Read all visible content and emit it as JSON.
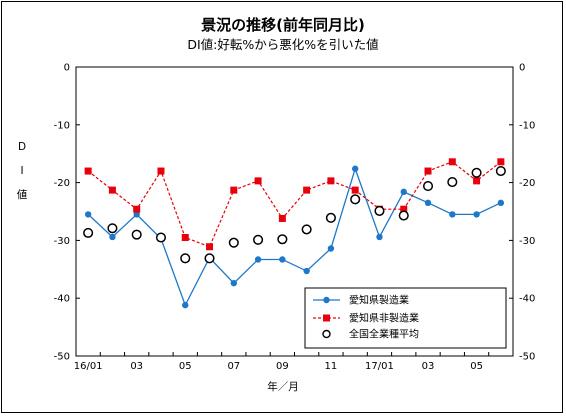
{
  "chart_data": {
    "type": "line",
    "title": "景況の推移(前年同月比)",
    "subtitle": "DI値:好転%から悪化%を引いた値",
    "xlabel": "年／月",
    "ylabel": "D I 値",
    "ylim": [
      -50,
      0
    ],
    "yticks": [
      0,
      -10,
      -20,
      -30,
      -40,
      -50
    ],
    "grid": false,
    "legend_position": "bottom-right",
    "x_tick_labels": [
      {
        "index": 0,
        "label": "16/01"
      },
      {
        "index": 2,
        "label": "03"
      },
      {
        "index": 4,
        "label": "05"
      },
      {
        "index": 6,
        "label": "07"
      },
      {
        "index": 8,
        "label": "09"
      },
      {
        "index": 10,
        "label": "11"
      },
      {
        "index": 12,
        "label": "17/01"
      },
      {
        "index": 14,
        "label": "03"
      },
      {
        "index": 16,
        "label": "05"
      }
    ],
    "series": [
      {
        "name": "愛知県製造業",
        "color": "#1f77c9",
        "style": "solid-circle",
        "values": [
          -25.5,
          -29.4,
          -25.5,
          -29.7,
          -41.2,
          -33.0,
          -37.4,
          -33.3,
          -33.3,
          -35.3,
          -31.4,
          -17.6,
          -29.4,
          -21.6,
          -23.5,
          -25.5,
          -25.5,
          -23.5
        ]
      },
      {
        "name": "愛知県非製造業",
        "color": "#e8000b",
        "style": "dashed-square",
        "values": [
          -18.0,
          -21.3,
          -24.6,
          -18.0,
          -29.5,
          -31.1,
          -21.3,
          -19.7,
          -26.2,
          -21.3,
          -19.7,
          -21.3,
          -24.6,
          -24.6,
          -18.0,
          -16.4,
          -19.7,
          -16.4
        ]
      },
      {
        "name": "全国全業種平均",
        "color": "#000000",
        "style": "open-circle",
        "values": [
          -28.7,
          -27.9,
          -29.0,
          -29.5,
          -33.1,
          -33.1,
          -30.4,
          -29.9,
          -29.8,
          -28.1,
          -26.1,
          -22.9,
          -24.9,
          -25.7,
          -20.6,
          -19.9,
          -18.3,
          -18.0
        ]
      }
    ]
  }
}
